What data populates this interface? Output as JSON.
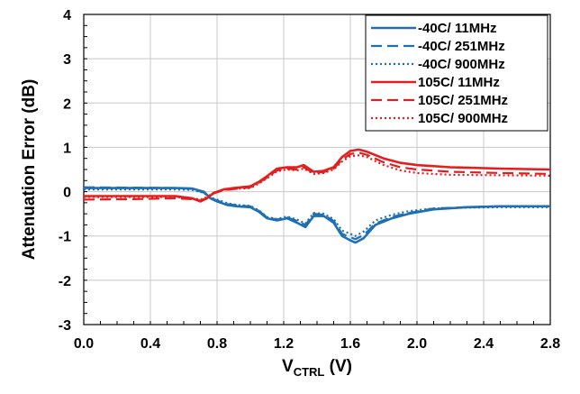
{
  "chart_data": {
    "type": "line",
    "title": "",
    "xlabel": {
      "main": "V",
      "sub": "CTRL",
      "unit": " (V)"
    },
    "ylabel": "Attenuation Error (dB)",
    "xlim": [
      0.0,
      2.8
    ],
    "ylim": [
      -3,
      4
    ],
    "x_ticks": [
      "0.0",
      "0.4",
      "0.8",
      "1.2",
      "1.6",
      "2.0",
      "2.4",
      "2.8"
    ],
    "y_ticks": [
      "-3",
      "-2",
      "-1",
      "0",
      "1",
      "2",
      "3",
      "4"
    ],
    "grid": true,
    "legend_position": "top-right",
    "series": [
      {
        "name": "-40C/ 11MHz",
        "color": "#1f6fb5",
        "dash": "solid",
        "points": [
          [
            0.0,
            0.08
          ],
          [
            0.3,
            0.08
          ],
          [
            0.55,
            0.08
          ],
          [
            0.65,
            0.07
          ],
          [
            0.72,
            0.0
          ],
          [
            0.76,
            -0.15
          ],
          [
            0.8,
            -0.22
          ],
          [
            0.86,
            -0.3
          ],
          [
            0.92,
            -0.33
          ],
          [
            1.0,
            -0.35
          ],
          [
            1.05,
            -0.45
          ],
          [
            1.1,
            -0.6
          ],
          [
            1.16,
            -0.65
          ],
          [
            1.22,
            -0.6
          ],
          [
            1.28,
            -0.7
          ],
          [
            1.33,
            -0.8
          ],
          [
            1.38,
            -0.55
          ],
          [
            1.44,
            -0.55
          ],
          [
            1.5,
            -0.7
          ],
          [
            1.55,
            -1.0
          ],
          [
            1.6,
            -1.1
          ],
          [
            1.63,
            -1.15
          ],
          [
            1.68,
            -1.05
          ],
          [
            1.75,
            -0.75
          ],
          [
            1.85,
            -0.6
          ],
          [
            1.95,
            -0.5
          ],
          [
            2.1,
            -0.4
          ],
          [
            2.3,
            -0.35
          ],
          [
            2.5,
            -0.33
          ],
          [
            2.8,
            -0.33
          ]
        ]
      },
      {
        "name": "-40C/ 251MHz",
        "color": "#1f6fb5",
        "dash": "dashed",
        "points": [
          [
            0.0,
            0.1
          ],
          [
            0.3,
            0.09
          ],
          [
            0.55,
            0.08
          ],
          [
            0.65,
            0.06
          ],
          [
            0.72,
            -0.02
          ],
          [
            0.76,
            -0.14
          ],
          [
            0.8,
            -0.2
          ],
          [
            0.86,
            -0.28
          ],
          [
            0.92,
            -0.31
          ],
          [
            1.0,
            -0.33
          ],
          [
            1.05,
            -0.43
          ],
          [
            1.1,
            -0.58
          ],
          [
            1.16,
            -0.63
          ],
          [
            1.22,
            -0.58
          ],
          [
            1.28,
            -0.66
          ],
          [
            1.33,
            -0.75
          ],
          [
            1.38,
            -0.5
          ],
          [
            1.44,
            -0.52
          ],
          [
            1.5,
            -0.66
          ],
          [
            1.55,
            -0.95
          ],
          [
            1.6,
            -1.03
          ],
          [
            1.63,
            -1.07
          ],
          [
            1.68,
            -0.98
          ],
          [
            1.75,
            -0.72
          ],
          [
            1.85,
            -0.57
          ],
          [
            1.95,
            -0.48
          ],
          [
            2.1,
            -0.38
          ],
          [
            2.3,
            -0.35
          ],
          [
            2.5,
            -0.33
          ],
          [
            2.8,
            -0.33
          ]
        ]
      },
      {
        "name": "-40C/ 900MHz",
        "color": "#1f6fb5",
        "dash": "dotted",
        "points": [
          [
            0.0,
            0.05
          ],
          [
            0.3,
            0.05
          ],
          [
            0.55,
            0.05
          ],
          [
            0.65,
            0.04
          ],
          [
            0.72,
            -0.03
          ],
          [
            0.76,
            -0.13
          ],
          [
            0.8,
            -0.18
          ],
          [
            0.86,
            -0.26
          ],
          [
            0.92,
            -0.3
          ],
          [
            1.0,
            -0.32
          ],
          [
            1.05,
            -0.42
          ],
          [
            1.1,
            -0.57
          ],
          [
            1.16,
            -0.62
          ],
          [
            1.22,
            -0.56
          ],
          [
            1.28,
            -0.63
          ],
          [
            1.33,
            -0.72
          ],
          [
            1.38,
            -0.48
          ],
          [
            1.44,
            -0.5
          ],
          [
            1.5,
            -0.62
          ],
          [
            1.55,
            -0.88
          ],
          [
            1.6,
            -0.95
          ],
          [
            1.63,
            -1.0
          ],
          [
            1.68,
            -0.9
          ],
          [
            1.75,
            -0.65
          ],
          [
            1.85,
            -0.52
          ],
          [
            1.95,
            -0.44
          ],
          [
            2.1,
            -0.38
          ],
          [
            2.3,
            -0.36
          ],
          [
            2.5,
            -0.35
          ],
          [
            2.8,
            -0.35
          ]
        ]
      },
      {
        "name": "105C/ 11MHz",
        "color": "#e41e1e",
        "dash": "solid",
        "points": [
          [
            0.0,
            -0.1
          ],
          [
            0.3,
            -0.1
          ],
          [
            0.55,
            -0.1
          ],
          [
            0.65,
            -0.15
          ],
          [
            0.7,
            -0.22
          ],
          [
            0.74,
            -0.15
          ],
          [
            0.78,
            -0.03
          ],
          [
            0.84,
            0.05
          ],
          [
            0.9,
            0.08
          ],
          [
            1.0,
            0.12
          ],
          [
            1.05,
            0.22
          ],
          [
            1.1,
            0.35
          ],
          [
            1.16,
            0.52
          ],
          [
            1.22,
            0.55
          ],
          [
            1.28,
            0.55
          ],
          [
            1.32,
            0.6
          ],
          [
            1.38,
            0.45
          ],
          [
            1.44,
            0.47
          ],
          [
            1.5,
            0.55
          ],
          [
            1.55,
            0.78
          ],
          [
            1.6,
            0.92
          ],
          [
            1.65,
            0.95
          ],
          [
            1.7,
            0.9
          ],
          [
            1.8,
            0.75
          ],
          [
            1.9,
            0.65
          ],
          [
            2.0,
            0.6
          ],
          [
            2.2,
            0.55
          ],
          [
            2.5,
            0.52
          ],
          [
            2.8,
            0.5
          ]
        ]
      },
      {
        "name": "105C/ 251MHz",
        "color": "#e41e1e",
        "dash": "dashed",
        "points": [
          [
            0.0,
            -0.18
          ],
          [
            0.3,
            -0.17
          ],
          [
            0.55,
            -0.15
          ],
          [
            0.65,
            -0.17
          ],
          [
            0.7,
            -0.2
          ],
          [
            0.74,
            -0.14
          ],
          [
            0.78,
            -0.04
          ],
          [
            0.84,
            0.03
          ],
          [
            0.9,
            0.06
          ],
          [
            1.0,
            0.1
          ],
          [
            1.05,
            0.2
          ],
          [
            1.1,
            0.32
          ],
          [
            1.16,
            0.48
          ],
          [
            1.22,
            0.52
          ],
          [
            1.28,
            0.5
          ],
          [
            1.32,
            0.55
          ],
          [
            1.38,
            0.42
          ],
          [
            1.44,
            0.44
          ],
          [
            1.5,
            0.52
          ],
          [
            1.55,
            0.72
          ],
          [
            1.6,
            0.85
          ],
          [
            1.65,
            0.88
          ],
          [
            1.7,
            0.83
          ],
          [
            1.8,
            0.66
          ],
          [
            1.9,
            0.55
          ],
          [
            2.0,
            0.5
          ],
          [
            2.2,
            0.45
          ],
          [
            2.5,
            0.42
          ],
          [
            2.8,
            0.4
          ]
        ]
      },
      {
        "name": "105C/ 900MHz",
        "color": "#e41e1e",
        "dash": "dotted",
        "points": [
          [
            0.0,
            -0.12
          ],
          [
            0.3,
            -0.12
          ],
          [
            0.55,
            -0.12
          ],
          [
            0.65,
            -0.15
          ],
          [
            0.7,
            -0.18
          ],
          [
            0.74,
            -0.12
          ],
          [
            0.78,
            -0.02
          ],
          [
            0.84,
            0.04
          ],
          [
            0.9,
            0.06
          ],
          [
            1.0,
            0.08
          ],
          [
            1.05,
            0.18
          ],
          [
            1.1,
            0.3
          ],
          [
            1.16,
            0.46
          ],
          [
            1.22,
            0.5
          ],
          [
            1.28,
            0.48
          ],
          [
            1.32,
            0.52
          ],
          [
            1.38,
            0.4
          ],
          [
            1.44,
            0.42
          ],
          [
            1.5,
            0.5
          ],
          [
            1.55,
            0.68
          ],
          [
            1.6,
            0.8
          ],
          [
            1.65,
            0.82
          ],
          [
            1.7,
            0.78
          ],
          [
            1.8,
            0.6
          ],
          [
            1.9,
            0.48
          ],
          [
            2.0,
            0.42
          ],
          [
            2.2,
            0.38
          ],
          [
            2.5,
            0.37
          ],
          [
            2.8,
            0.36
          ]
        ]
      }
    ]
  }
}
